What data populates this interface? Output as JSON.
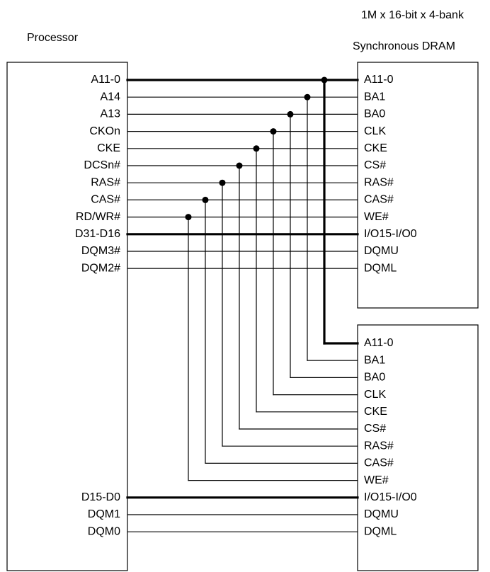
{
  "captions": {
    "processor": "Processor",
    "sdram_line1": "1M x 16-bit x 4-bank",
    "sdram_line2": "Synchronous DRAM"
  },
  "processor_pins_upper": [
    "A11-0",
    "A14",
    "A13",
    "CKOn",
    "CKE",
    "DCSn#",
    "RAS#",
    "CAS#",
    "RD/WR#",
    "D31-D16",
    "DQM3#",
    "DQM2#"
  ],
  "processor_pins_lower": [
    "D15-D0",
    "DQM1",
    "DQM0"
  ],
  "sdram_pins": [
    "A11-0",
    "BA1",
    "BA0",
    "CLK",
    "CKE",
    "CS#",
    "RAS#",
    "CAS#",
    "WE#",
    "I/O15-I/O0",
    "DQMU",
    "DQML"
  ],
  "bus_pins": [
    "A11-0",
    "D31-D16",
    "D15-D0",
    "I/O15-I/O0"
  ]
}
